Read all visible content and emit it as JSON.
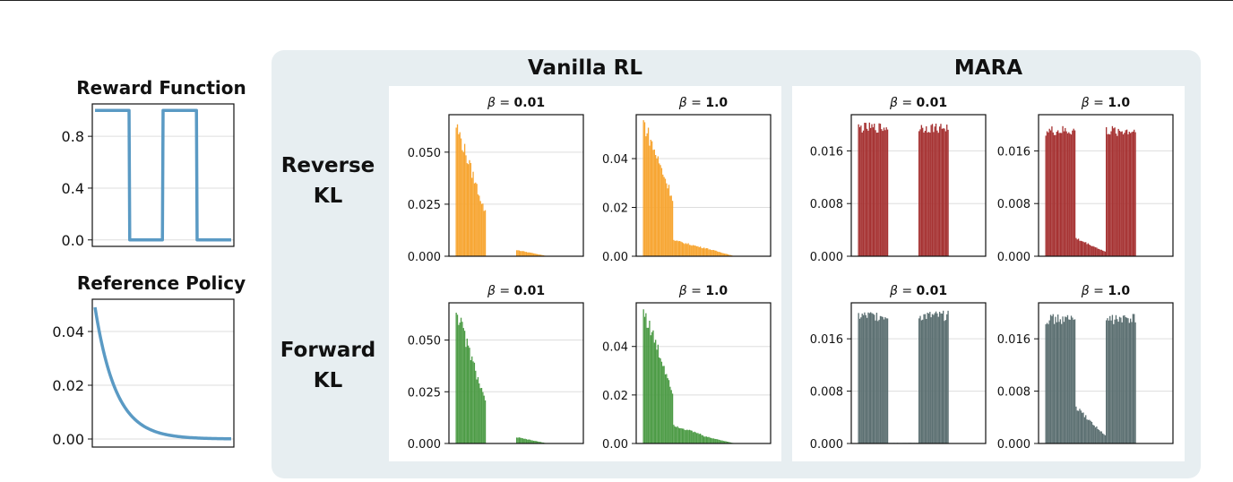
{
  "headers": {
    "vanilla": "Vanilla RL",
    "mara": "MARA",
    "reverse_line1": "Reverse",
    "reverse_line2": "KL",
    "forward_line1": "Forward",
    "forward_line2": "KL"
  },
  "colors": {
    "panel_bg": "#e7eef1",
    "line_blue": "#5a9ac4",
    "orange": "#f7a531",
    "green": "#4c9b45",
    "red": "#a63232",
    "slate": "#5b6f71",
    "grid": "#dddddd"
  },
  "chart_data": [
    {
      "id": "reward",
      "type": "line",
      "title": "Reward Function",
      "ylim": [
        -0.05,
        1.05
      ],
      "yticks": [
        "0.0",
        "0.4",
        "0.8"
      ],
      "ytick_values": [
        0,
        0.4,
        0.8
      ],
      "x": [
        0,
        25,
        25.5,
        49.5,
        50,
        74.5,
        75,
        100
      ],
      "y": [
        1,
        1,
        0,
        0,
        1,
        1,
        0,
        0
      ],
      "xlim": [
        -2,
        102
      ],
      "color": "#5a9ac4",
      "grid": true
    },
    {
      "id": "refpolicy",
      "type": "line",
      "title": "Reference Policy",
      "ylim": [
        -0.003,
        0.052
      ],
      "yticks": [
        "0.00",
        "0.02",
        "0.04"
      ],
      "ytick_values": [
        0,
        0.02,
        0.04
      ],
      "curve": {
        "kind": "exp_decay",
        "y0": 0.049,
        "decay": 0.065,
        "x_end": 100
      },
      "xlim": [
        -2,
        102
      ],
      "color": "#5a9ac4",
      "grid": true
    },
    {
      "id": "vr_rev_001",
      "type": "bar",
      "method": "Vanilla RL",
      "divergence": "Reverse KL",
      "subtitle_prefix": "β = ",
      "subtitle_value": "0.01",
      "color": "#f7a531",
      "ylim": [
        0,
        0.068
      ],
      "yticks": [
        "0.000",
        "0.025",
        "0.050"
      ],
      "ytick_values": [
        0,
        0.025,
        0.05
      ],
      "segments": [
        {
          "from": 0,
          "to": 25,
          "start": 0.063,
          "end": 0.021
        },
        {
          "from": 50,
          "to": 75,
          "start": 0.003,
          "end": 0.0002
        }
      ]
    },
    {
      "id": "vr_rev_1",
      "type": "bar",
      "method": "Vanilla RL",
      "divergence": "Reverse KL",
      "subtitle_prefix": "β = ",
      "subtitle_value": "1.0",
      "color": "#f7a531",
      "ylim": [
        0,
        0.058
      ],
      "yticks": [
        "0.00",
        "0.02",
        "0.04"
      ],
      "ytick_values": [
        0,
        0.02,
        0.04
      ],
      "segments": [
        {
          "from": 0,
          "to": 25,
          "start": 0.055,
          "end": 0.024
        },
        {
          "from": 25,
          "to": 50,
          "start": 0.0065,
          "end": 0.0035
        },
        {
          "from": 50,
          "to": 75,
          "start": 0.0035,
          "end": 0.0002
        }
      ]
    },
    {
      "id": "mara_rev_001",
      "type": "bar",
      "method": "MARA",
      "divergence": "Reverse KL",
      "subtitle_prefix": "β = ",
      "subtitle_value": "0.01",
      "color": "#a63232",
      "ylim": [
        0,
        0.0215
      ],
      "yticks": [
        "0.000",
        "0.008",
        "0.016"
      ],
      "ytick_values": [
        0,
        0.008,
        0.016
      ],
      "segments": [
        {
          "from": 0,
          "to": 25,
          "start": 0.0195,
          "end": 0.0195,
          "noise": 0.0008
        },
        {
          "from": 50,
          "to": 75,
          "start": 0.0195,
          "end": 0.0195,
          "noise": 0.0008
        }
      ]
    },
    {
      "id": "mara_rev_1",
      "type": "bar",
      "method": "MARA",
      "divergence": "Reverse KL",
      "subtitle_prefix": "β = ",
      "subtitle_value": "1.0",
      "color": "#a63232",
      "ylim": [
        0,
        0.0215
      ],
      "yticks": [
        "0.000",
        "0.008",
        "0.016"
      ],
      "ytick_values": [
        0,
        0.008,
        0.016
      ],
      "segments": [
        {
          "from": 0,
          "to": 25,
          "start": 0.019,
          "end": 0.019,
          "noise": 0.0008
        },
        {
          "from": 25,
          "to": 50,
          "start": 0.0027,
          "end": 0.0007
        },
        {
          "from": 50,
          "to": 75,
          "start": 0.019,
          "end": 0.019,
          "noise": 0.0008
        }
      ]
    },
    {
      "id": "vr_fwd_001",
      "type": "bar",
      "method": "Vanilla RL",
      "divergence": "Forward KL",
      "subtitle_prefix": "β = ",
      "subtitle_value": "0.01",
      "color": "#4c9b45",
      "ylim": [
        0,
        0.068
      ],
      "yticks": [
        "0.000",
        "0.025",
        "0.050"
      ],
      "ytick_values": [
        0,
        0.025,
        0.05
      ],
      "segments": [
        {
          "from": 0,
          "to": 25,
          "start": 0.065,
          "end": 0.02
        },
        {
          "from": 50,
          "to": 75,
          "start": 0.003,
          "end": 0.0002
        }
      ]
    },
    {
      "id": "vr_fwd_1",
      "type": "bar",
      "method": "Vanilla RL",
      "divergence": "Forward KL",
      "subtitle_prefix": "β = ",
      "subtitle_value": "1.0",
      "color": "#4c9b45",
      "ylim": [
        0,
        0.058
      ],
      "yticks": [
        "0.00",
        "0.02",
        "0.04"
      ],
      "ytick_values": [
        0,
        0.02,
        0.04
      ],
      "segments": [
        {
          "from": 0,
          "to": 25,
          "start": 0.055,
          "end": 0.022
        },
        {
          "from": 25,
          "to": 50,
          "start": 0.0075,
          "end": 0.0035
        },
        {
          "from": 50,
          "to": 75,
          "start": 0.003,
          "end": 0.0002
        }
      ]
    },
    {
      "id": "mara_fwd_001",
      "type": "bar",
      "method": "MARA",
      "divergence": "Forward KL",
      "subtitle_prefix": "β = ",
      "subtitle_value": "0.01",
      "color": "#5b6f71",
      "ylim": [
        0,
        0.0215
      ],
      "yticks": [
        "0.000",
        "0.008",
        "0.016"
      ],
      "ytick_values": [
        0,
        0.008,
        0.016
      ],
      "segments": [
        {
          "from": 0,
          "to": 25,
          "start": 0.0195,
          "end": 0.0195,
          "noise": 0.0008
        },
        {
          "from": 25,
          "to": 50,
          "start": 0.0001,
          "end": 0.0001
        },
        {
          "from": 50,
          "to": 75,
          "start": 0.0195,
          "end": 0.0195,
          "noise": 0.0008
        }
      ]
    },
    {
      "id": "mara_fwd_1",
      "type": "bar",
      "method": "MARA",
      "divergence": "Forward KL",
      "subtitle_prefix": "β = ",
      "subtitle_value": "1.0",
      "color": "#5b6f71",
      "ylim": [
        0,
        0.0215
      ],
      "yticks": [
        "0.000",
        "0.008",
        "0.016"
      ],
      "ytick_values": [
        0,
        0.008,
        0.016
      ],
      "segments": [
        {
          "from": 0,
          "to": 25,
          "start": 0.019,
          "end": 0.019,
          "noise": 0.0008
        },
        {
          "from": 25,
          "to": 50,
          "start": 0.0055,
          "end": 0.0012
        },
        {
          "from": 50,
          "to": 75,
          "start": 0.019,
          "end": 0.019,
          "noise": 0.0008
        }
      ]
    }
  ]
}
